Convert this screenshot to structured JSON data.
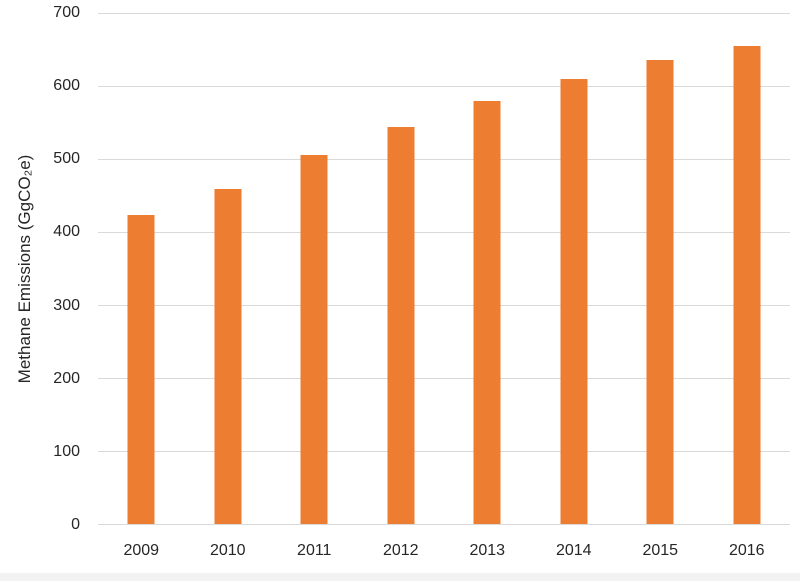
{
  "chart_data": {
    "type": "bar",
    "title": "",
    "categories": [
      "2009",
      "2010",
      "2011",
      "2012",
      "2013",
      "2014",
      "2015",
      "2016"
    ],
    "values": [
      423,
      459,
      505,
      544,
      580,
      610,
      636,
      655
    ],
    "xlabel": "",
    "ylabel": "Methane Emissions (GgCO₂e)",
    "ylim": [
      0,
      700
    ],
    "ytick_step": 100,
    "yticks": [
      "0",
      "100",
      "200",
      "300",
      "400",
      "500",
      "600",
      "700"
    ],
    "grid": true,
    "legend": null,
    "bar_color": "#ED7D31",
    "gridline_color": "#D9D9D9",
    "text_color": "#262626",
    "background": "#FFFFFF"
  }
}
